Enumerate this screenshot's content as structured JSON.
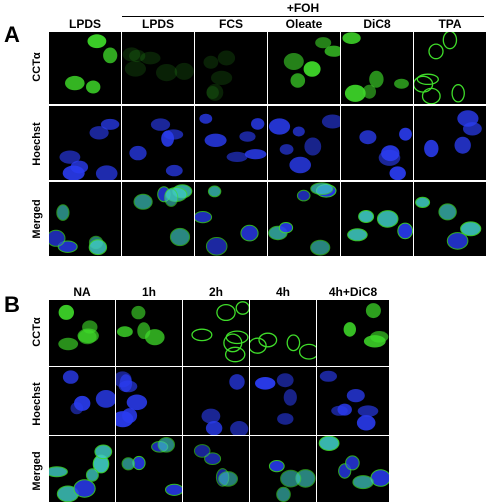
{
  "panel_a": {
    "letter": "A",
    "header_group": "+FOH",
    "columns": [
      "LPDS",
      "LPDS",
      "FCS",
      "Oleate",
      "DiC8",
      "TPA"
    ],
    "rows": [
      "CCTα",
      "Hoechst",
      "Merged"
    ]
  },
  "panel_b": {
    "letter": "B",
    "columns": [
      "NA",
      "1h",
      "2h",
      "4h",
      "4h+DiC8"
    ],
    "rows": [
      "CCTα",
      "Hoechst",
      "Merged"
    ]
  },
  "colors": {
    "background": "#000000",
    "cct_green": "#3fdc2a",
    "hoechst_blue": "#2a3cf0",
    "merged_cyan": "#3fc9c0"
  }
}
